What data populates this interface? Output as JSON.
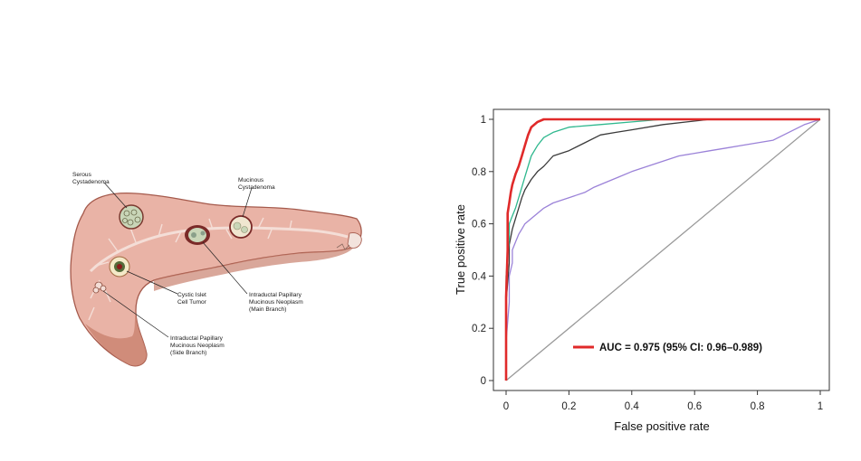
{
  "illustration": {
    "labels": [
      {
        "id": "serous",
        "lines": [
          "Serous",
          "Cystadenoma"
        ]
      },
      {
        "id": "mucinous",
        "lines": [
          "Mucinous",
          "Cystadenoma"
        ]
      },
      {
        "id": "islet",
        "lines": [
          "Cystic Islet",
          "Cell Tumor"
        ]
      },
      {
        "id": "ipmn-main",
        "lines": [
          "Intraductal Papillary",
          "Mucinous Neoplasm",
          "(Main Branch)"
        ]
      },
      {
        "id": "ipmn-side",
        "lines": [
          "Intraductal Papillary",
          "Mucinous Neoplasm",
          "(Side Branch)"
        ]
      }
    ],
    "colors": {
      "tissue": "#e9b3a6",
      "tissue_dark": "#a55a4c",
      "duct": "#f4ded7",
      "cyst": "#c9d6b8"
    }
  },
  "chart_data": {
    "type": "line",
    "xlabel": "False positive rate",
    "ylabel": "True positive rate",
    "xlim": [
      0,
      1
    ],
    "ylim": [
      0,
      1
    ],
    "xticks": [
      "0",
      "0.2",
      "0.4",
      "0.6",
      "0.8",
      "1"
    ],
    "yticks": [
      "0",
      "0.2",
      "0.4",
      "0.6",
      "0.8",
      "1"
    ],
    "grid": false,
    "legend_position": "bottom-right",
    "legend_text": "AUC = 0.975 (95% CI: 0.96–0.989)",
    "series": [
      {
        "color": "#9b82d8",
        "points": [
          [
            0,
            0
          ],
          [
            0,
            0.15
          ],
          [
            0.01,
            0.3
          ],
          [
            0.01,
            0.4
          ],
          [
            0.02,
            0.45
          ],
          [
            0.02,
            0.5
          ],
          [
            0.03,
            0.53
          ],
          [
            0.04,
            0.56
          ],
          [
            0.05,
            0.58
          ],
          [
            0.06,
            0.6
          ],
          [
            0.08,
            0.62
          ],
          [
            0.1,
            0.64
          ],
          [
            0.12,
            0.66
          ],
          [
            0.15,
            0.68
          ],
          [
            0.2,
            0.7
          ],
          [
            0.25,
            0.72
          ],
          [
            0.28,
            0.74
          ],
          [
            0.32,
            0.76
          ],
          [
            0.36,
            0.78
          ],
          [
            0.4,
            0.8
          ],
          [
            0.45,
            0.82
          ],
          [
            0.5,
            0.84
          ],
          [
            0.55,
            0.86
          ],
          [
            0.6,
            0.87
          ],
          [
            0.65,
            0.88
          ],
          [
            0.7,
            0.89
          ],
          [
            0.75,
            0.9
          ],
          [
            0.8,
            0.91
          ],
          [
            0.85,
            0.92
          ],
          [
            0.9,
            0.95
          ],
          [
            0.95,
            0.98
          ],
          [
            1,
            1
          ]
        ]
      },
      {
        "color": "#3a3a3a",
        "points": [
          [
            0,
            0
          ],
          [
            0,
            0.3
          ],
          [
            0.01,
            0.45
          ],
          [
            0.01,
            0.52
          ],
          [
            0.02,
            0.58
          ],
          [
            0.03,
            0.62
          ],
          [
            0.04,
            0.66
          ],
          [
            0.05,
            0.7
          ],
          [
            0.06,
            0.73
          ],
          [
            0.08,
            0.77
          ],
          [
            0.1,
            0.8
          ],
          [
            0.12,
            0.82
          ],
          [
            0.15,
            0.86
          ],
          [
            0.2,
            0.88
          ],
          [
            0.25,
            0.91
          ],
          [
            0.3,
            0.94
          ],
          [
            0.35,
            0.95
          ],
          [
            0.4,
            0.96
          ],
          [
            0.5,
            0.98
          ],
          [
            0.65,
            1
          ],
          [
            1,
            1
          ]
        ]
      },
      {
        "color": "#2fb88e",
        "points": [
          [
            0,
            0
          ],
          [
            0,
            0.4
          ],
          [
            0.01,
            0.55
          ],
          [
            0.01,
            0.6
          ],
          [
            0.02,
            0.63
          ],
          [
            0.03,
            0.66
          ],
          [
            0.04,
            0.7
          ],
          [
            0.05,
            0.74
          ],
          [
            0.06,
            0.78
          ],
          [
            0.07,
            0.82
          ],
          [
            0.08,
            0.86
          ],
          [
            0.1,
            0.9
          ],
          [
            0.12,
            0.93
          ],
          [
            0.15,
            0.95
          ],
          [
            0.2,
            0.97
          ],
          [
            0.3,
            0.98
          ],
          [
            0.4,
            0.99
          ],
          [
            0.5,
            1
          ],
          [
            1,
            1
          ]
        ]
      },
      {
        "color": "#e02a2a",
        "points": [
          [
            0,
            0
          ],
          [
            0,
            0.32
          ],
          [
            0.005,
            0.5
          ],
          [
            0.005,
            0.64
          ],
          [
            0.01,
            0.68
          ],
          [
            0.015,
            0.72
          ],
          [
            0.02,
            0.75
          ],
          [
            0.03,
            0.79
          ],
          [
            0.04,
            0.82
          ],
          [
            0.05,
            0.86
          ],
          [
            0.06,
            0.9
          ],
          [
            0.07,
            0.94
          ],
          [
            0.08,
            0.97
          ],
          [
            0.1,
            0.99
          ],
          [
            0.12,
            1
          ],
          [
            1,
            1
          ]
        ]
      }
    ]
  }
}
